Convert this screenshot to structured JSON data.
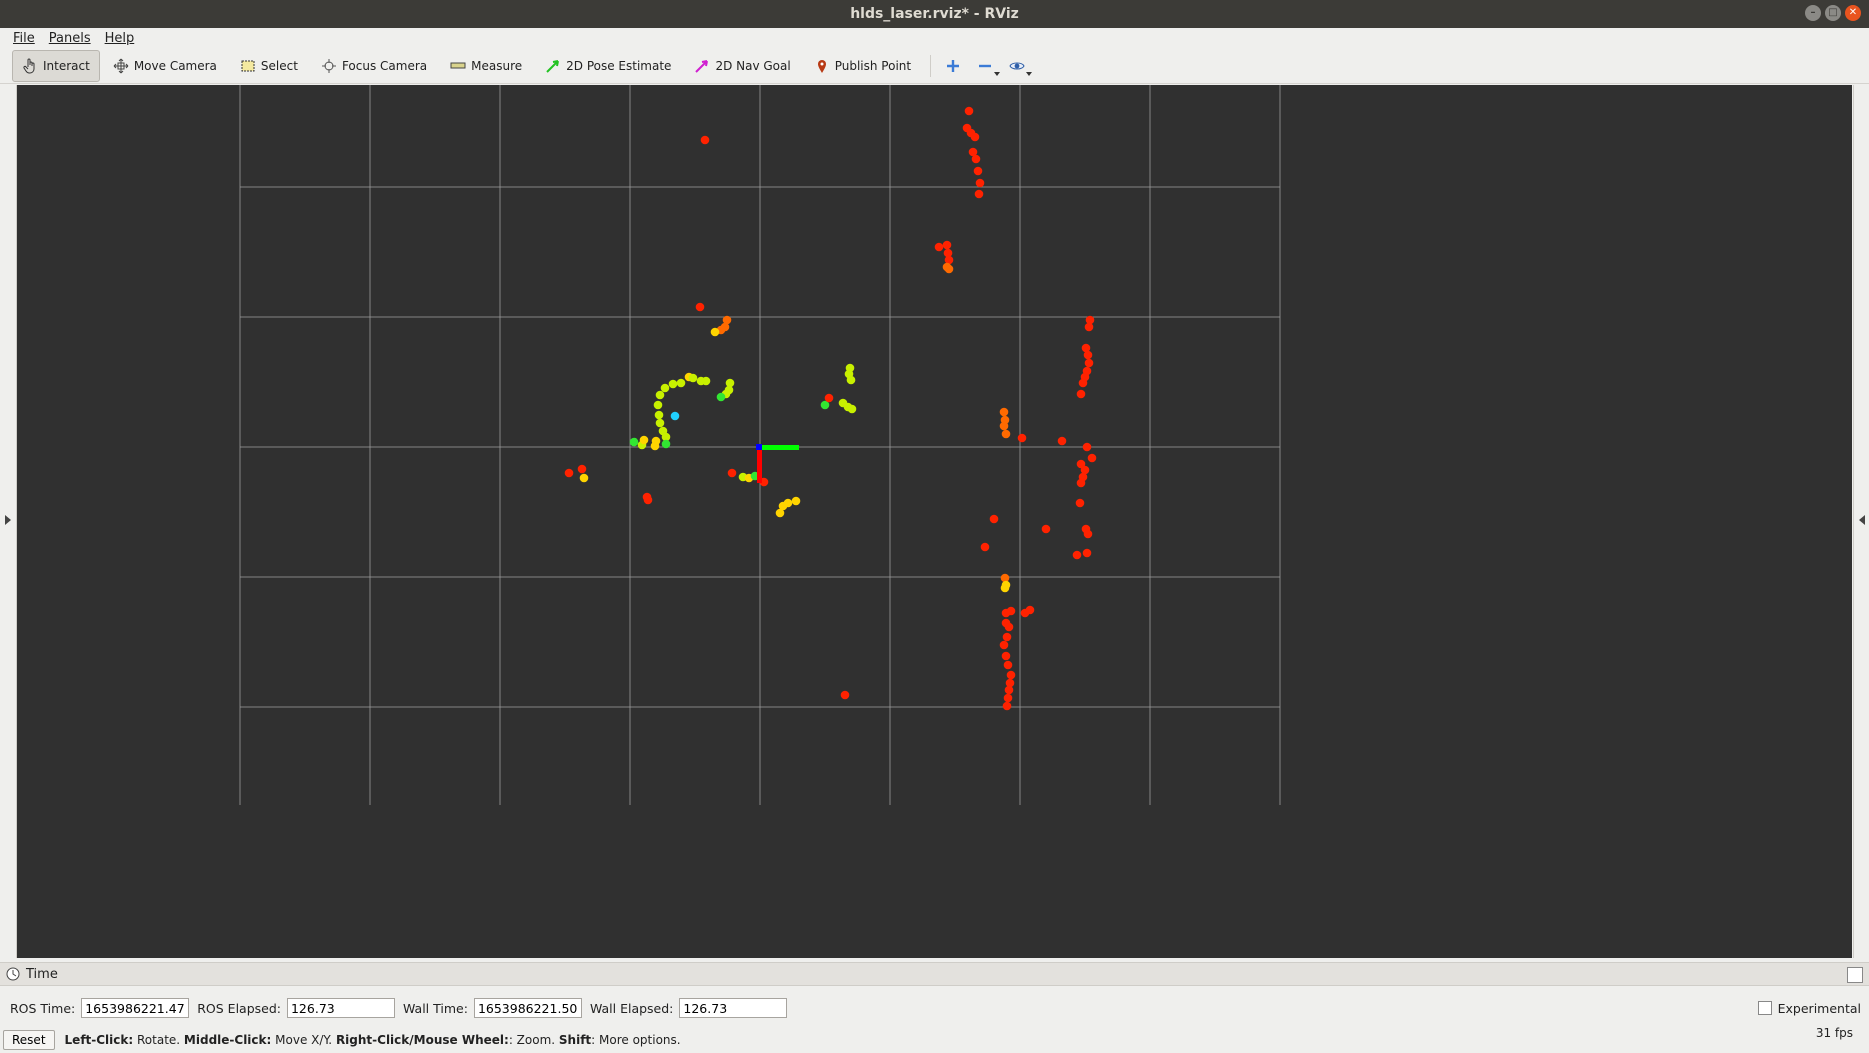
{
  "window": {
    "title": "hlds_laser.rviz* - RViz"
  },
  "menu": [
    "File",
    "Panels",
    "Help"
  ],
  "toolbar": {
    "tools": [
      {
        "label": "Interact",
        "icon": "hand-pointer-icon",
        "active": true
      },
      {
        "label": "Move Camera",
        "icon": "move-arrows-icon"
      },
      {
        "label": "Select",
        "icon": "select-box-icon"
      },
      {
        "label": "Focus Camera",
        "icon": "focus-target-icon"
      },
      {
        "label": "Measure",
        "icon": "ruler-icon"
      },
      {
        "label": "2D Pose Estimate",
        "icon": "green-arrow-icon"
      },
      {
        "label": "2D Nav Goal",
        "icon": "magenta-arrow-icon"
      },
      {
        "label": "Publish Point",
        "icon": "map-pin-icon"
      }
    ],
    "icon_buttons": [
      "add-tool-icon",
      "remove-tool-icon",
      "eye-icon"
    ]
  },
  "time_panel": {
    "title": "Time",
    "ros_time_label": "ROS Time:",
    "ros_time": "1653986221.47",
    "ros_elapsed_label": "ROS Elapsed:",
    "ros_elapsed": "126.73",
    "wall_time_label": "Wall Time:",
    "wall_time": "1653986221.50",
    "wall_elapsed_label": "Wall Elapsed:",
    "wall_elapsed": "126.73",
    "experimental_label": "Experimental",
    "experimental_checked": false
  },
  "status": {
    "reset_label": "Reset",
    "hint": [
      {
        "b": "Left-Click:",
        "t": " Rotate. "
      },
      {
        "b": "Middle-Click:",
        "t": " Move X/Y. "
      },
      {
        "b": "Right-Click/Mouse Wheel:",
        "t": ": Zoom. "
      },
      {
        "b": "Shift",
        "t": ": More options."
      }
    ],
    "fps": "31 fps"
  },
  "colors": {
    "background": "#303030",
    "grid": "#a0a0a0",
    "axis_x": "#ff0000",
    "axis_y": "#00ff00",
    "axis_z": "#0000ff"
  }
}
